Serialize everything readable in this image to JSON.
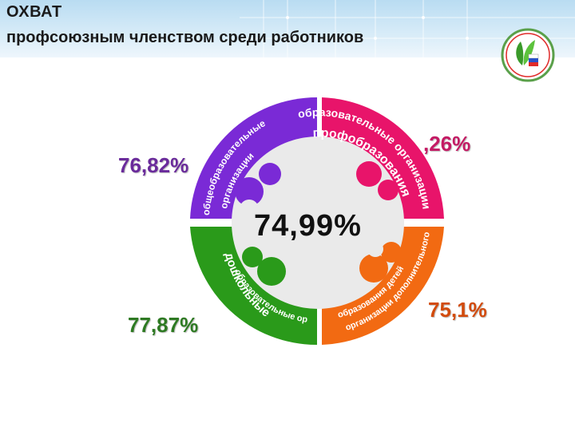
{
  "header": {
    "title": "ОХВАТ",
    "subtitle": "профсоюзным членством среди работников"
  },
  "center": {
    "value": "74,99%"
  },
  "segments": [
    {
      "id": "general",
      "color": "#7a2ad6",
      "value": "76,82%",
      "label_line1": "общеобразовательные",
      "label_line2": "организации"
    },
    {
      "id": "vocational",
      "color": "#e8146a",
      "value": ",26%",
      "label_line1": "образовательные организации",
      "label_line2": "профобразования"
    },
    {
      "id": "preschool",
      "color": "#2a9a1a",
      "value": "77,87%",
      "label_line1": "дошкольные",
      "label_line2": "образовательные организации"
    },
    {
      "id": "additional",
      "color": "#f26a12",
      "value": "75,1%",
      "label_line1": "организации дополнительного",
      "label_line2": "образования детей"
    }
  ]
}
